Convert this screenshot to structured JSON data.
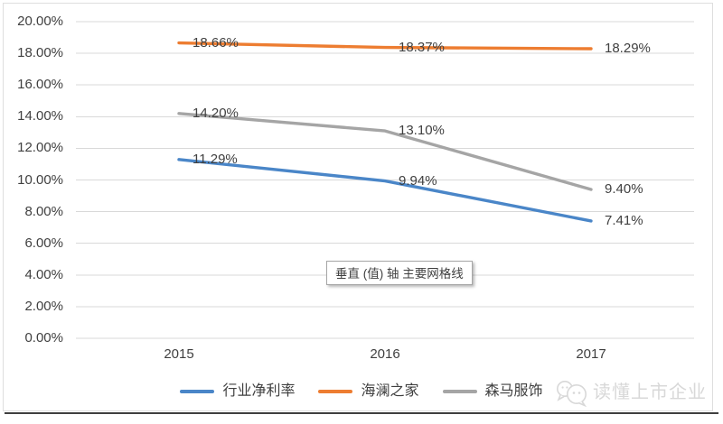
{
  "chart_data": {
    "type": "line",
    "categories": [
      "2015",
      "2016",
      "2017"
    ],
    "series": [
      {
        "name": "行业净利率",
        "color": "#4A86C8",
        "values": [
          11.29,
          9.94,
          7.41
        ],
        "data_labels": [
          "11.29%",
          "9.94%",
          "7.41%"
        ]
      },
      {
        "name": "海澜之家",
        "color": "#ED7D31",
        "values": [
          18.66,
          18.37,
          18.29
        ],
        "data_labels": [
          "18.66%",
          "18.37%",
          "18.29%"
        ]
      },
      {
        "name": "森马服饰",
        "color": "#A5A5A5",
        "values": [
          14.2,
          13.1,
          9.4
        ],
        "data_labels": [
          "14.20%",
          "13.10%",
          "9.40%"
        ]
      }
    ],
    "title": "",
    "xlabel": "",
    "ylabel": "",
    "ylim": [
      0,
      20
    ],
    "ytick_step": 2,
    "ytick_labels": [
      "20.00%",
      "18.00%",
      "16.00%",
      "14.00%",
      "12.00%",
      "10.00%",
      "8.00%",
      "6.00%",
      "4.00%",
      "2.00%",
      "0.00%"
    ],
    "grid": true,
    "legend_position": "bottom"
  },
  "tooltip": {
    "text": "垂直 (值) 轴 主要网格线"
  },
  "watermark": {
    "text": "读懂上市企业",
    "icon": "wechat-logo-icon"
  },
  "colors": {
    "gridline": "#D9D9D9",
    "axis_text": "#404040",
    "data_label_text": "#404040",
    "frame_border": "#DEDEDE",
    "bottom_rule": "#3F3F3F",
    "watermark": "#D8D8D8"
  }
}
